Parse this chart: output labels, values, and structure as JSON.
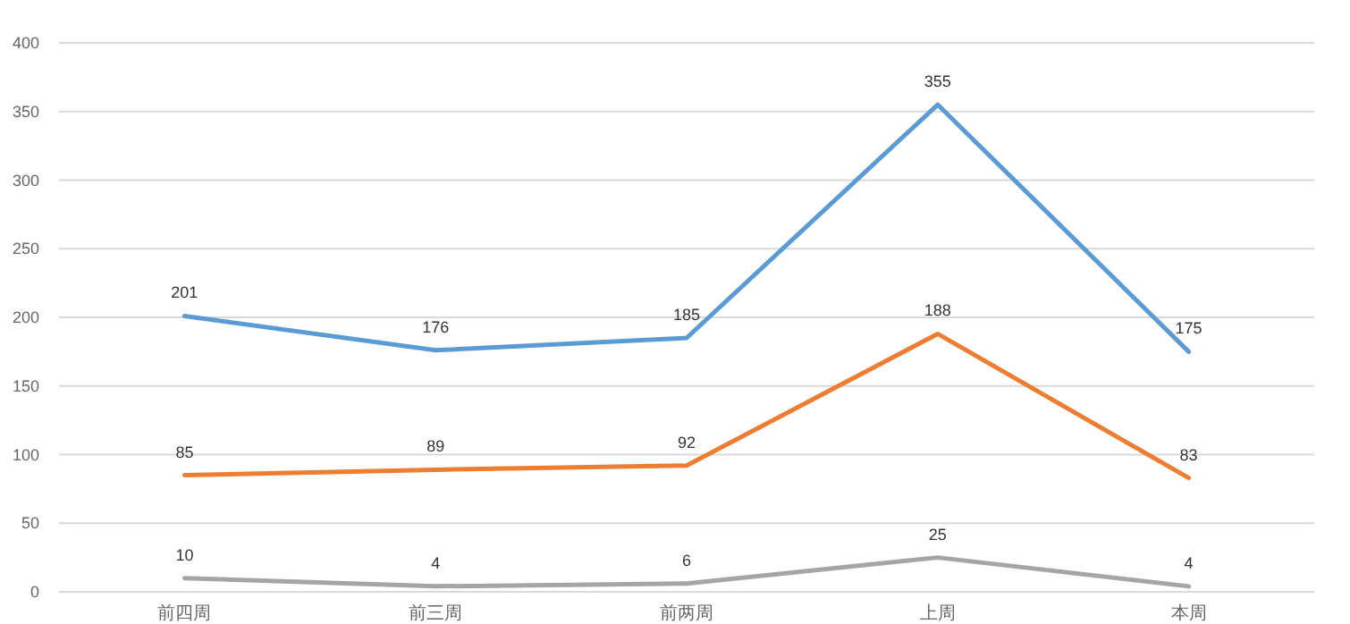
{
  "chart_data": {
    "type": "line",
    "categories": [
      "前四周",
      "前三周",
      "前两周",
      "上周",
      "本周"
    ],
    "series": [
      {
        "color": "#5b9bd5",
        "values": [
          201,
          176,
          185,
          355,
          175
        ]
      },
      {
        "color": "#ed7d31",
        "values": [
          85,
          89,
          92,
          188,
          83
        ]
      },
      {
        "color": "#a5a5a5",
        "values": [
          10,
          4,
          6,
          25,
          4
        ]
      }
    ],
    "ylim": [
      0,
      400
    ],
    "yticks": [
      0,
      50,
      100,
      150,
      200,
      250,
      300,
      350,
      400
    ],
    "grid": "y",
    "data_labels": true,
    "marker": "none",
    "line_style": "solid"
  }
}
